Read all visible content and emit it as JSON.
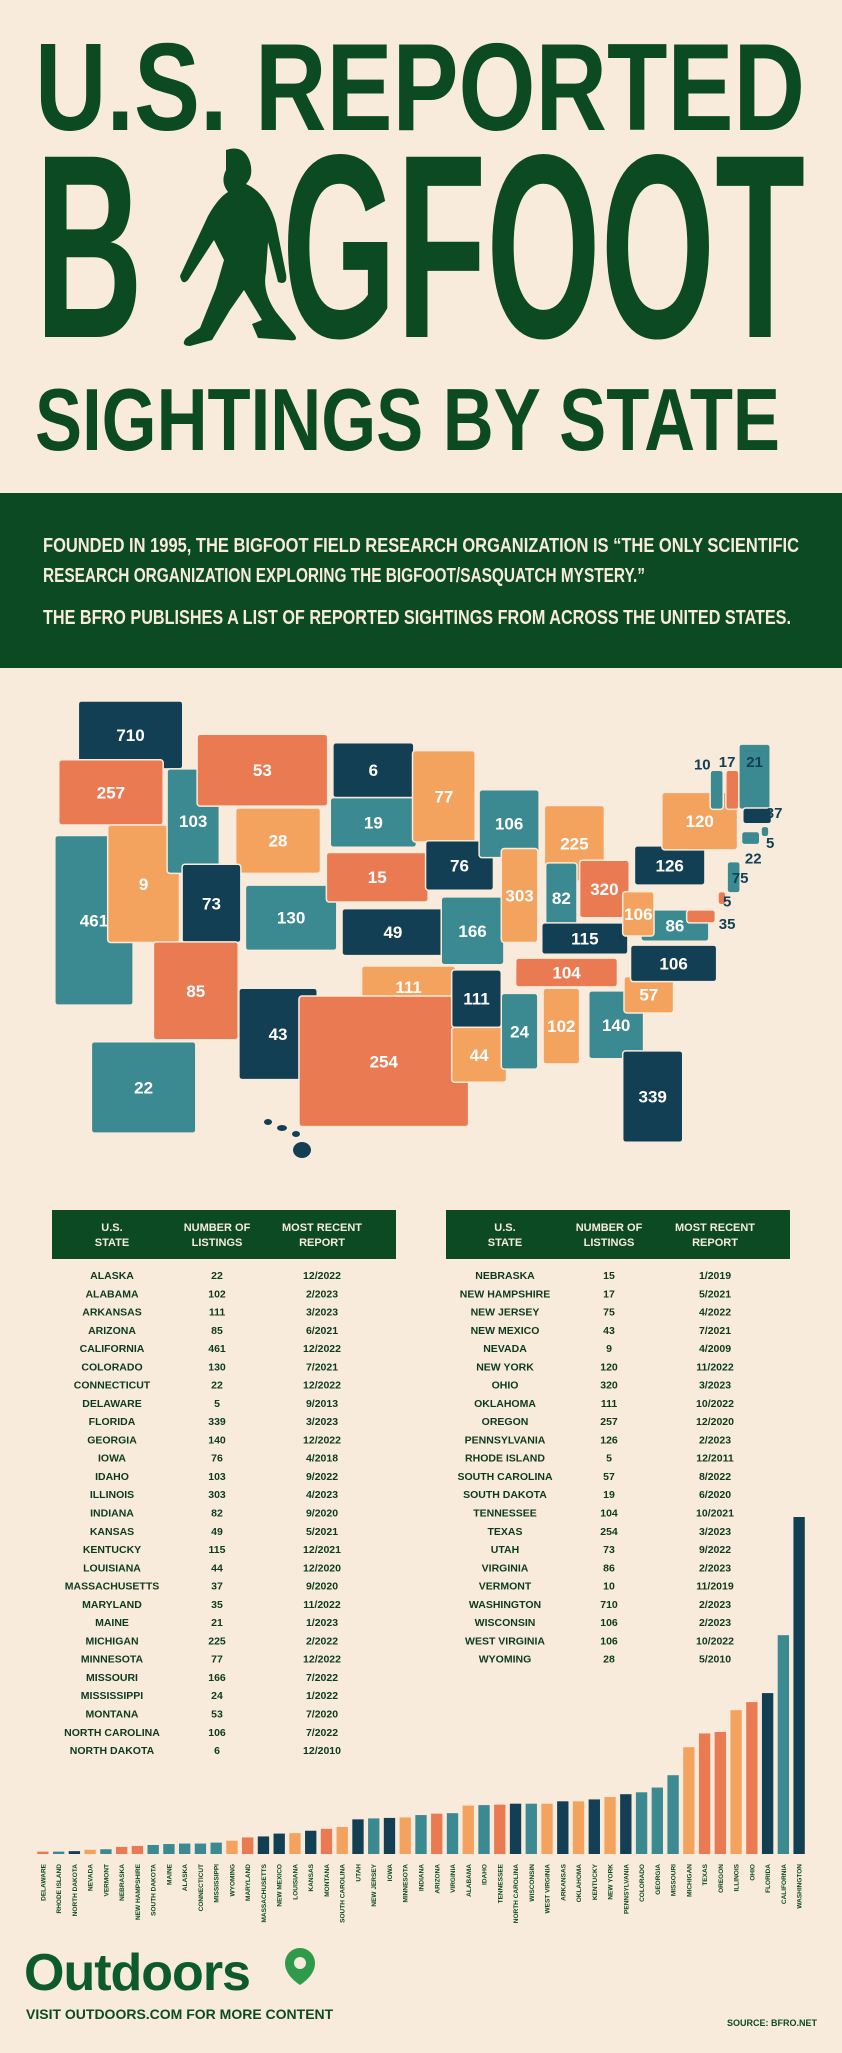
{
  "header": {
    "line1": "U.S. REPORTED",
    "word_start": "B",
    "word_end": "GFOOT",
    "line3": "SIGHTINGS BY STATE"
  },
  "intro": {
    "paragraph1": [
      "FOUNDED IN 1995, THE BIGFOOT FIELD RESEARCH ORGANIZATION IS “THE ONLY SCIENTIFIC",
      "RESEARCH ORGANIZATION EXPLORING THE BIGFOOT/SASQUATCH MYSTERY.”"
    ],
    "paragraph2": "THE BFRO PUBLISHES A LIST OF REPORTED SIGHTINGS FROM ACROSS THE UNITED STATES."
  },
  "tables": [
    {
      "columns": [
        [
          "U.S.",
          "STATE"
        ],
        [
          "NUMBER OF",
          "LISTINGS"
        ],
        [
          "MOST RECENT",
          "REPORT"
        ]
      ],
      "rows": [
        [
          "ALASKA",
          22,
          "12/2022"
        ],
        [
          "ALABAMA",
          102,
          "2/2023"
        ],
        [
          "ARKANSAS",
          111,
          "3/2023"
        ],
        [
          "ARIZONA",
          85,
          "6/2021"
        ],
        [
          "CALIFORNIA",
          461,
          "12/2022"
        ],
        [
          "COLORADO",
          130,
          "7/2021"
        ],
        [
          "CONNECTICUT",
          22,
          "12/2022"
        ],
        [
          "DELAWARE",
          5,
          "9/2013"
        ],
        [
          "FLORIDA",
          339,
          "3/2023"
        ],
        [
          "GEORGIA",
          140,
          "12/2022"
        ],
        [
          "IOWA",
          76,
          "4/2018"
        ],
        [
          "IDAHO",
          103,
          "9/2022"
        ],
        [
          "ILLINOIS",
          303,
          "4/2023"
        ],
        [
          "INDIANA",
          82,
          "9/2020"
        ],
        [
          "KANSAS",
          49,
          "5/2021"
        ],
        [
          "KENTUCKY",
          115,
          "12/2021"
        ],
        [
          "LOUISIANA",
          44,
          "12/2020"
        ],
        [
          "MASSACHUSETTS",
          37,
          "9/2020"
        ],
        [
          "MARYLAND",
          35,
          "11/2022"
        ],
        [
          "MAINE",
          21,
          "1/2023"
        ],
        [
          "MICHIGAN",
          225,
          "2/2022"
        ],
        [
          "MINNESOTA",
          77,
          "12/2022"
        ],
        [
          "MISSOURI",
          166,
          "7/2022"
        ],
        [
          "MISSISSIPPI",
          24,
          "1/2022"
        ],
        [
          "MONTANA",
          53,
          "7/2020"
        ],
        [
          "NORTH CAROLINA",
          106,
          "7/2022"
        ],
        [
          "NORTH DAKOTA",
          6,
          "12/2010"
        ]
      ]
    },
    {
      "columns": [
        [
          "U.S.",
          "STATE"
        ],
        [
          "NUMBER OF",
          "LISTINGS"
        ],
        [
          "MOST RECENT",
          "REPORT"
        ]
      ],
      "rows": [
        [
          "NEBRASKA",
          15,
          "1/2019"
        ],
        [
          "NEW HAMPSHIRE",
          17,
          "5/2021"
        ],
        [
          "NEW JERSEY",
          75,
          "4/2022"
        ],
        [
          "NEW MEXICO",
          43,
          "7/2021"
        ],
        [
          "NEVADA",
          9,
          "4/2009"
        ],
        [
          "NEW YORK",
          120,
          "11/2022"
        ],
        [
          "OHIO",
          320,
          "3/2023"
        ],
        [
          "OKLAHOMA",
          111,
          "10/2022"
        ],
        [
          "OREGON",
          257,
          "12/2020"
        ],
        [
          "PENNSYLVANIA",
          126,
          "2/2023"
        ],
        [
          "RHODE ISLAND",
          5,
          "12/2011"
        ],
        [
          "SOUTH CAROLINA",
          57,
          "8/2022"
        ],
        [
          "SOUTH DAKOTA",
          19,
          "6/2020"
        ],
        [
          "TENNESSEE",
          104,
          "10/2021"
        ],
        [
          "TEXAS",
          254,
          "3/2023"
        ],
        [
          "UTAH",
          73,
          "9/2022"
        ],
        [
          "VIRGINIA",
          86,
          "2/2023"
        ],
        [
          "VERMONT",
          10,
          "11/2019"
        ],
        [
          "WASHINGTON",
          710,
          "2/2023"
        ],
        [
          "WISCONSIN",
          106,
          "2/2023"
        ],
        [
          "WEST VIRGINIA",
          106,
          "10/2022"
        ],
        [
          "WYOMING",
          28,
          "5/2010"
        ]
      ]
    }
  ],
  "chart_data": {
    "type": "bar",
    "categories": [
      "DELAWARE",
      "RHODE ISLAND",
      "NORTH DAKOTA",
      "NEVADA",
      "VERMONT",
      "NEBRASKA",
      "NEW HAMPSHIRE",
      "SOUTH DAKOTA",
      "MAINE",
      "ALASKA",
      "CONNECTICUT",
      "MISSISSIPPI",
      "WYOMING",
      "MARYLAND",
      "MASSACHUSETTS",
      "NEW MEXICO",
      "LOUISIANA",
      "KANSAS",
      "MONTANA",
      "SOUTH CAROLINA",
      "UTAH",
      "NEW JERSEY",
      "IOWA",
      "MINNESOTA",
      "INDIANA",
      "ARIZONA",
      "VIRGINIA",
      "ALABAMA",
      "IDAHO",
      "TENNESSEE",
      "NORTH CAROLINA",
      "WISCONSIN",
      "WEST VIRGINIA",
      "ARKANSAS",
      "OKLAHOMA",
      "KENTUCKY",
      "NEW YORK",
      "PENNSYLVANIA",
      "COLORADO",
      "GEORGIA",
      "MISSOURI",
      "MICHIGAN",
      "TEXAS",
      "OREGON",
      "ILLINOIS",
      "OHIO",
      "FLORIDA",
      "CALIFORNIA",
      "WASHINGTON"
    ],
    "values": [
      5,
      5,
      6,
      9,
      10,
      15,
      17,
      19,
      21,
      22,
      22,
      24,
      28,
      35,
      37,
      43,
      44,
      49,
      53,
      57,
      73,
      75,
      76,
      77,
      82,
      85,
      86,
      102,
      103,
      104,
      106,
      106,
      106,
      111,
      111,
      115,
      120,
      126,
      130,
      140,
      166,
      225,
      254,
      257,
      303,
      320,
      339,
      461,
      710
    ],
    "colors": [
      "#ea7a52",
      "#3b8a91",
      "#133f54",
      "#f4a35f",
      "#3b8a91",
      "#ea7a52",
      "#ea7a52",
      "#3b8a91",
      "#3b8a91",
      "#3b8a91",
      "#3b8a91",
      "#3b8a91",
      "#f4a35f",
      "#ea7a52",
      "#133f54",
      "#133f54",
      "#f4a35f",
      "#133f54",
      "#ea7a52",
      "#f4a35f",
      "#133f54",
      "#3b8a91",
      "#133f54",
      "#f4a35f",
      "#3b8a91",
      "#ea7a52",
      "#3b8a91",
      "#f4a35f",
      "#3b8a91",
      "#ea7a52",
      "#133f54",
      "#3b8a91",
      "#f4a35f",
      "#133f54",
      "#f4a35f",
      "#133f54",
      "#f4a35f",
      "#133f54",
      "#3b8a91",
      "#3b8a91",
      "#3b8a91",
      "#f4a35f",
      "#ea7a52",
      "#ea7a52",
      "#f4a35f",
      "#ea7a52",
      "#133f54",
      "#3b8a91",
      "#133f54"
    ]
  },
  "footer": {
    "logo": "Outdoors",
    "cta": "VISIT OUTDOORS.COM FOR MORE CONTENT",
    "source": "SOURCE: BFRO.NET"
  }
}
